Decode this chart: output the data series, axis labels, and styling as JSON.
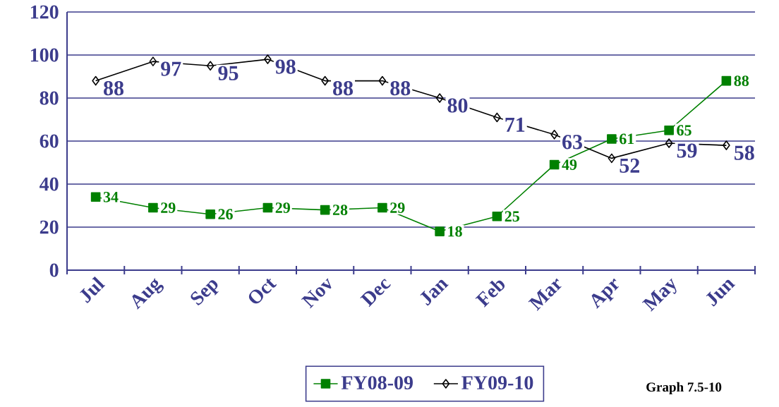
{
  "chart_data": {
    "type": "line",
    "categories": [
      "Jul",
      "Aug",
      "Sep",
      "Oct",
      "Nov",
      "Dec",
      "Jan",
      "Feb",
      "Mar",
      "Apr",
      "May",
      "Jun"
    ],
    "series": [
      {
        "name": "FY08-09",
        "color": "#008000",
        "marker": "square",
        "values": [
          34,
          29,
          26,
          29,
          28,
          29,
          18,
          25,
          49,
          61,
          65,
          88
        ]
      },
      {
        "name": "FY09-10",
        "color": "#000000",
        "marker": "diamond",
        "values": [
          88,
          97,
          95,
          98,
          88,
          88,
          80,
          71,
          63,
          52,
          59,
          58
        ]
      }
    ],
    "ylim": [
      0,
      120
    ],
    "yticks": [
      0,
      20,
      40,
      60,
      80,
      100,
      120
    ],
    "grid": "y",
    "legend": "bottom",
    "data_labels": true,
    "annotations": [
      "Graph 7.5-10"
    ]
  }
}
